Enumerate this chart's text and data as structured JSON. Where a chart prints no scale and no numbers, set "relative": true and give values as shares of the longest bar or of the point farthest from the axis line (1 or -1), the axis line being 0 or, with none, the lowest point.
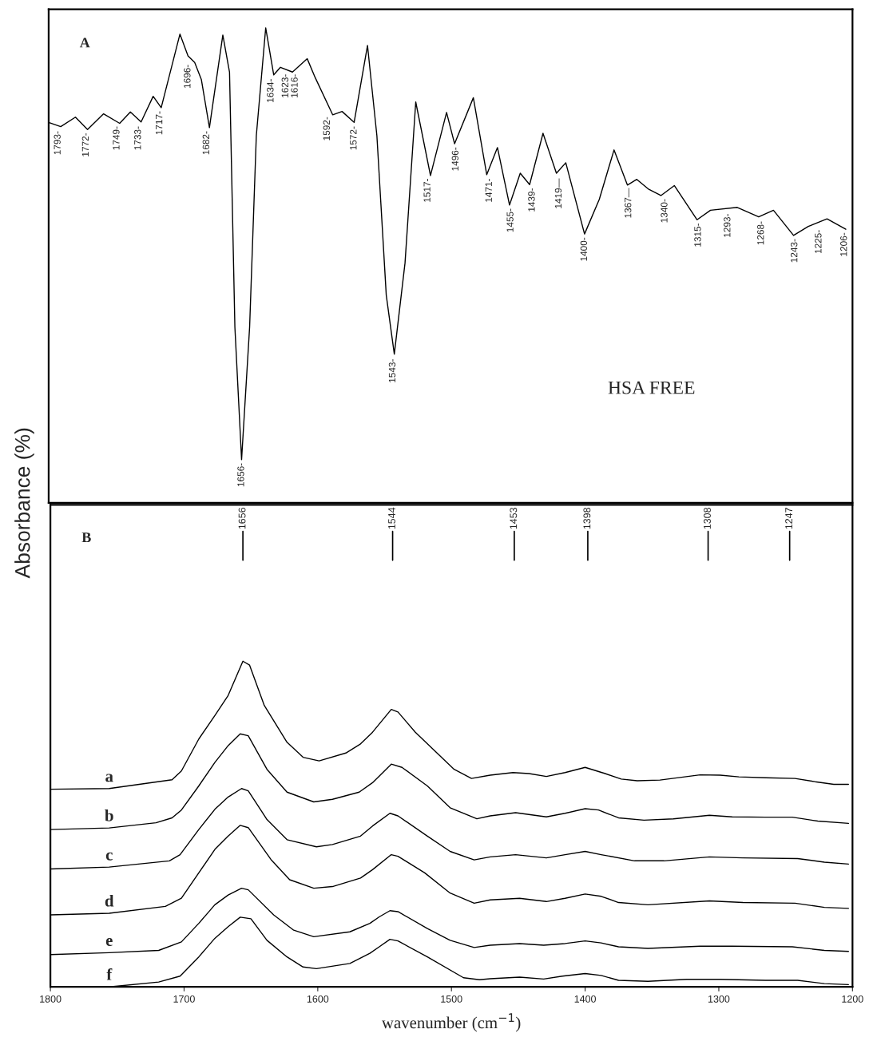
{
  "chart_data": [
    {
      "type": "line",
      "title": "A",
      "ylabel": "Absorbance (%)",
      "relative": true,
      "xlim": [
        1800,
        1200
      ],
      "tick_labels": false,
      "legend": false,
      "grid": false,
      "marker": "none",
      "line_style": "solid",
      "series": [
        {
          "color": "#000000",
          "x": [
            1800,
            1791,
            1780,
            1771,
            1759,
            1747,
            1739,
            1731,
            1722,
            1716,
            1702,
            1696,
            1691,
            1686,
            1680,
            1670,
            1665,
            1661,
            1656,
            1650,
            1645,
            1638,
            1632,
            1627,
            1618,
            1607,
            1601,
            1588,
            1581,
            1572,
            1562,
            1555,
            1548,
            1542,
            1534,
            1526,
            1515,
            1503,
            1497,
            1483,
            1473,
            1465,
            1456,
            1448,
            1441,
            1431,
            1421,
            1414,
            1400,
            1389,
            1378,
            1368,
            1361,
            1352,
            1343,
            1333,
            1316,
            1306,
            1286,
            1270,
            1259,
            1244,
            1233,
            1219,
            1205
          ],
          "values": [
            0.801,
            0.792,
            0.812,
            0.786,
            0.819,
            0.799,
            0.823,
            0.802,
            0.856,
            0.832,
            0.987,
            0.941,
            0.927,
            0.891,
            0.79,
            0.985,
            0.907,
            0.37,
            0.091,
            0.37,
            0.773,
            1.0,
            0.901,
            0.917,
            0.907,
            0.935,
            0.895,
            0.817,
            0.824,
            0.801,
            0.963,
            0.773,
            0.437,
            0.313,
            0.505,
            0.844,
            0.689,
            0.822,
            0.756,
            0.853,
            0.691,
            0.748,
            0.627,
            0.694,
            0.67,
            0.778,
            0.694,
            0.716,
            0.566,
            0.639,
            0.743,
            0.669,
            0.681,
            0.66,
            0.647,
            0.668,
            0.596,
            0.616,
            0.622,
            0.602,
            0.616,
            0.563,
            0.582,
            0.598,
            0.576
          ]
        }
      ],
      "annotations": [
        "HSA FREE",
        {
          "text": "1793-",
          "x": 1793,
          "y": 0.79
        },
        {
          "text": "1772-",
          "x": 1772,
          "y": 0.786
        },
        {
          "text": "1749-",
          "x": 1749,
          "y": 0.8
        },
        {
          "text": "1733-",
          "x": 1733,
          "y": 0.8
        },
        {
          "text": "1717-",
          "x": 1717,
          "y": 0.832
        },
        {
          "text": "1696-",
          "x": 1696,
          "y": 0.93
        },
        {
          "text": "1682-",
          "x": 1682,
          "y": 0.79
        },
        {
          "text": "1656-",
          "x": 1656,
          "y": 0.091
        },
        {
          "text": "1634-",
          "x": 1634,
          "y": 0.9
        },
        {
          "text": "1623-",
          "x": 1623,
          "y": 0.91
        },
        {
          "text": "1616-",
          "x": 1616,
          "y": 0.91
        },
        {
          "text": "1592-",
          "x": 1592,
          "y": 0.82
        },
        {
          "text": "1572-",
          "x": 1572,
          "y": 0.8
        },
        {
          "text": "1543-",
          "x": 1543,
          "y": 0.31
        },
        {
          "text": "1517-",
          "x": 1517,
          "y": 0.69
        },
        {
          "text": "1496-",
          "x": 1496,
          "y": 0.756
        },
        {
          "text": "1471-",
          "x": 1471,
          "y": 0.69
        },
        {
          "text": "1455-",
          "x": 1455,
          "y": 0.627
        },
        {
          "text": "1439-",
          "x": 1439,
          "y": 0.67
        },
        {
          "text": "1419—",
          "x": 1419,
          "y": 0.69
        },
        {
          "text": "1400-",
          "x": 1400,
          "y": 0.566
        },
        {
          "text": "1367—",
          "x": 1367,
          "y": 0.67
        },
        {
          "text": "1340-",
          "x": 1340,
          "y": 0.647
        },
        {
          "text": "1315-",
          "x": 1315,
          "y": 0.596
        },
        {
          "text": "1293-",
          "x": 1293,
          "y": 0.616
        },
        {
          "text": "1268-",
          "x": 1268,
          "y": 0.6
        },
        {
          "text": "1243-",
          "x": 1243,
          "y": 0.563
        },
        {
          "text": "1225-",
          "x": 1225,
          "y": 0.582
        },
        {
          "text": "1206-",
          "x": 1206,
          "y": 0.576
        }
      ]
    },
    {
      "type": "line",
      "title": "B",
      "xlabel": "wavenumber (cm$^{−1}$)",
      "relative": true,
      "xlim": [
        1800,
        1200
      ],
      "xticks": [
        1800,
        1700,
        1600,
        1500,
        1400,
        1300,
        1200
      ],
      "tick_labels": "x",
      "legend": false,
      "grid": false,
      "marker": "none",
      "line_style": "solid",
      "series": [
        {
          "name": "a",
          "color": "#000000",
          "x": [
            1800,
            1756,
            1709,
            1702,
            1689,
            1677,
            1667,
            1656,
            1651,
            1640,
            1623,
            1611,
            1599,
            1579,
            1568,
            1559,
            1545,
            1540,
            1527,
            1498,
            1485,
            1471,
            1454,
            1442,
            1429,
            1415,
            1400,
            1385,
            1373,
            1361,
            1344,
            1329,
            1314,
            1299,
            1285,
            1265,
            1243,
            1228,
            1214,
            1203
          ],
          "values": [
            0.607,
            0.609,
            0.636,
            0.663,
            0.761,
            0.833,
            0.895,
            1.0,
            0.988,
            0.864,
            0.751,
            0.705,
            0.694,
            0.718,
            0.746,
            0.782,
            0.852,
            0.844,
            0.782,
            0.668,
            0.64,
            0.65,
            0.658,
            0.655,
            0.646,
            0.658,
            0.674,
            0.655,
            0.638,
            0.633,
            0.635,
            0.643,
            0.651,
            0.65,
            0.645,
            0.642,
            0.64,
            0.63,
            0.622,
            0.622
          ]
        },
        {
          "name": "b",
          "color": "#000000",
          "x": [
            1800,
            1756,
            1721,
            1709,
            1702,
            1689,
            1677,
            1667,
            1658,
            1652,
            1638,
            1623,
            1603,
            1589,
            1569,
            1559,
            1545,
            1537,
            1518,
            1501,
            1481,
            1471,
            1452,
            1429,
            1415,
            1400,
            1390,
            1375,
            1356,
            1334,
            1307,
            1290,
            1265,
            1245,
            1226,
            1203
          ],
          "values": [
            0.483,
            0.488,
            0.504,
            0.519,
            0.543,
            0.617,
            0.689,
            0.741,
            0.777,
            0.771,
            0.668,
            0.598,
            0.568,
            0.576,
            0.598,
            0.627,
            0.684,
            0.674,
            0.617,
            0.55,
            0.516,
            0.525,
            0.535,
            0.522,
            0.533,
            0.547,
            0.543,
            0.519,
            0.512,
            0.516,
            0.527,
            0.522,
            0.521,
            0.521,
            0.509,
            0.502
          ]
        },
        {
          "name": "c",
          "color": "#000000",
          "x": [
            1800,
            1756,
            1711,
            1703,
            1689,
            1677,
            1667,
            1657,
            1652,
            1638,
            1623,
            1601,
            1589,
            1568,
            1559,
            1546,
            1540,
            1518,
            1501,
            1483,
            1471,
            1452,
            1429,
            1415,
            1400,
            1388,
            1363,
            1341,
            1307,
            1282,
            1241,
            1221,
            1203
          ],
          "values": [
            0.362,
            0.368,
            0.387,
            0.406,
            0.483,
            0.545,
            0.583,
            0.609,
            0.602,
            0.514,
            0.452,
            0.43,
            0.437,
            0.463,
            0.494,
            0.533,
            0.525,
            0.463,
            0.416,
            0.39,
            0.399,
            0.406,
            0.396,
            0.406,
            0.416,
            0.406,
            0.387,
            0.387,
            0.399,
            0.396,
            0.394,
            0.383,
            0.377
          ]
        },
        {
          "name": "d",
          "color": "#000000",
          "x": [
            1800,
            1756,
            1714,
            1702,
            1689,
            1677,
            1667,
            1658,
            1652,
            1635,
            1621,
            1603,
            1589,
            1568,
            1559,
            1545,
            1540,
            1520,
            1501,
            1483,
            1471,
            1449,
            1429,
            1415,
            1400,
            1388,
            1375,
            1353,
            1307,
            1282,
            1243,
            1221,
            1203
          ],
          "values": [
            0.221,
            0.226,
            0.247,
            0.272,
            0.35,
            0.422,
            0.463,
            0.496,
            0.489,
            0.391,
            0.329,
            0.303,
            0.308,
            0.334,
            0.36,
            0.406,
            0.401,
            0.35,
            0.288,
            0.257,
            0.267,
            0.272,
            0.262,
            0.272,
            0.285,
            0.278,
            0.259,
            0.252,
            0.264,
            0.259,
            0.257,
            0.244,
            0.241
          ]
        },
        {
          "name": "e",
          "color": "#000000",
          "x": [
            1800,
            1756,
            1719,
            1702,
            1689,
            1677,
            1667,
            1657,
            1652,
            1633,
            1618,
            1603,
            1576,
            1561,
            1554,
            1546,
            1540,
            1518,
            1501,
            1483,
            1471,
            1449,
            1431,
            1415,
            1400,
            1388,
            1375,
            1353,
            1314,
            1290,
            1245,
            1221,
            1203
          ],
          "values": [
            0.099,
            0.105,
            0.112,
            0.138,
            0.195,
            0.252,
            0.282,
            0.303,
            0.298,
            0.221,
            0.174,
            0.154,
            0.169,
            0.195,
            0.215,
            0.234,
            0.231,
            0.179,
            0.143,
            0.121,
            0.128,
            0.133,
            0.128,
            0.133,
            0.141,
            0.135,
            0.123,
            0.118,
            0.125,
            0.125,
            0.123,
            0.112,
            0.109
          ]
        },
        {
          "name": "f",
          "color": "#000000",
          "x": [
            1768,
            1756,
            1719,
            1703,
            1689,
            1677,
            1667,
            1658,
            1650,
            1638,
            1623,
            1611,
            1601,
            1576,
            1561,
            1554,
            1546,
            1540,
            1518,
            1491,
            1479,
            1471,
            1449,
            1431,
            1417,
            1400,
            1388,
            1375,
            1353,
            1324,
            1299,
            1265,
            1241,
            1221,
            1203
          ],
          "values": [
            0,
            0,
            0.015,
            0.033,
            0.092,
            0.149,
            0.185,
            0.214,
            0.209,
            0.143,
            0.092,
            0.061,
            0.056,
            0.072,
            0.103,
            0.123,
            0.146,
            0.141,
            0.092,
            0.028,
            0.022,
            0.025,
            0.03,
            0.024,
            0.033,
            0.041,
            0.035,
            0.02,
            0.017,
            0.023,
            0.023,
            0.02,
            0.02,
            0.01,
            0.007
          ]
        }
      ],
      "ref_lines": [
        {
          "axis": "x",
          "value": 1656,
          "label": "1656"
        },
        {
          "axis": "x",
          "value": 1544,
          "label": "1544"
        },
        {
          "axis": "x",
          "value": 1453,
          "label": "1453"
        },
        {
          "axis": "x",
          "value": 1398,
          "label": "1398"
        },
        {
          "axis": "x",
          "value": 1308,
          "label": "1308"
        },
        {
          "axis": "x",
          "value": 1247,
          "label": "1247"
        }
      ]
    }
  ]
}
